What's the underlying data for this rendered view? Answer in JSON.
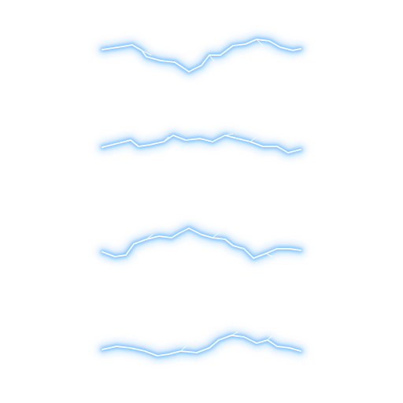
{
  "scene": {
    "background": "#ffffff",
    "colors": {
      "outer_glow": "#8ec9ff",
      "mid_glow": "#5fb3ff",
      "core": "#ffffff",
      "edge": "#3fa3ff"
    },
    "bolt_count": 4
  }
}
